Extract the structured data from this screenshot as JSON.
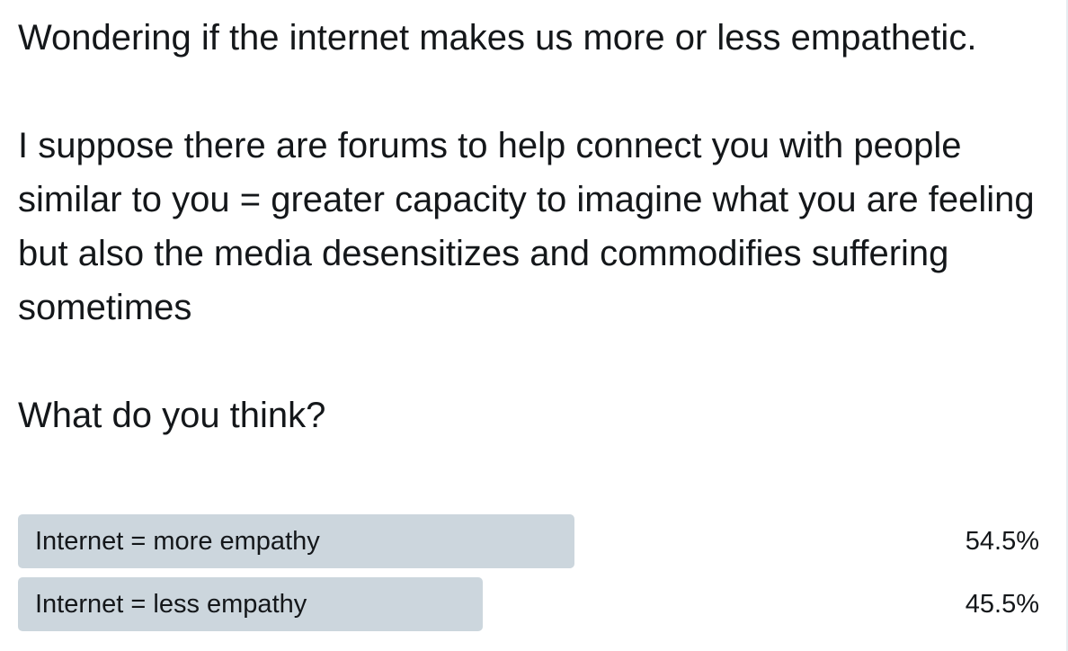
{
  "tweet": {
    "paragraph_1": "Wondering if the internet makes us more or less empathetic.",
    "paragraph_2": "I suppose there are forums to help connect you with people similar to you = greater capacity to imagine what you are feeling but also the media desensitizes and commodifies suffering sometimes",
    "paragraph_3": "What do you think?"
  },
  "poll": {
    "options": [
      {
        "label": "Internet = more empathy",
        "percent_text": "54.5%",
        "percent": 54.5,
        "leader": true
      },
      {
        "label": "Internet = less empathy",
        "percent_text": "45.5%",
        "percent": 45.5,
        "leader": false
      }
    ]
  },
  "colors": {
    "bar": "#ccd6dd",
    "text": "#14171a",
    "divider": "#e6ecf0"
  }
}
